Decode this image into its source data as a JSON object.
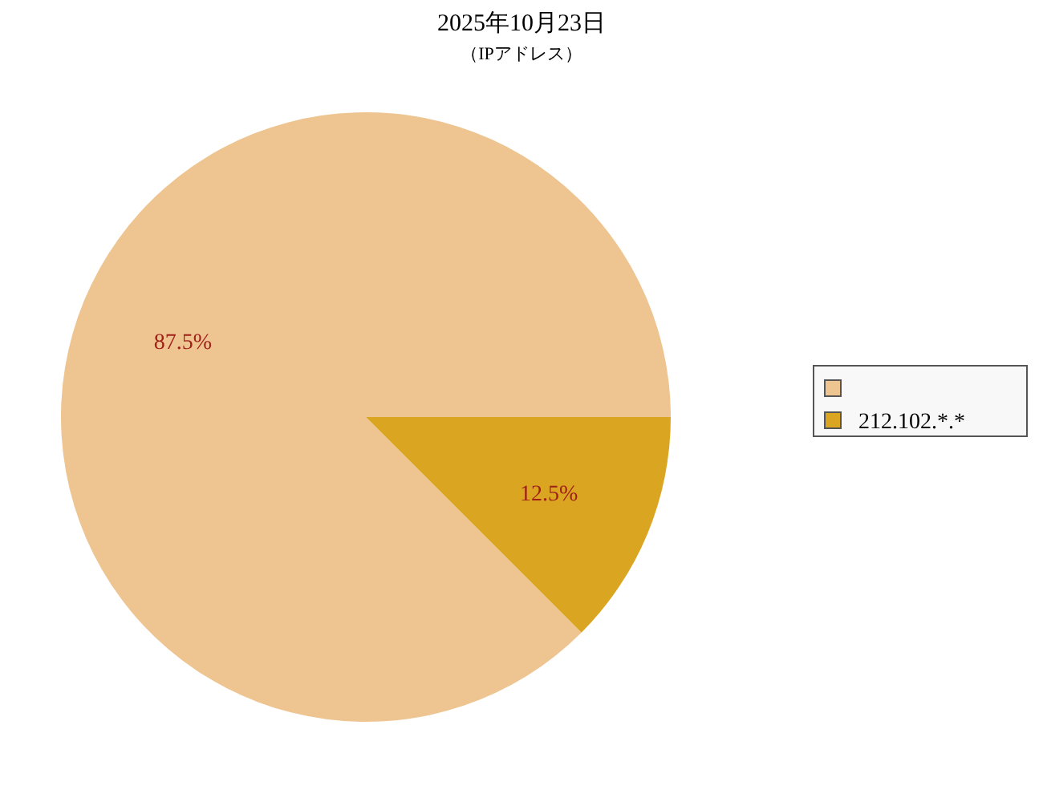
{
  "chart_data": {
    "type": "pie",
    "title": "2025年10月23日",
    "subtitle": "（IPアドレス）",
    "categories": [
      null,
      "212.102.*.*"
    ],
    "values": [
      87.5,
      12.5
    ],
    "colors": [
      "#eec591",
      "#daa520"
    ],
    "value_labels": [
      "87.5%",
      "12.5%"
    ],
    "legend": "right"
  }
}
